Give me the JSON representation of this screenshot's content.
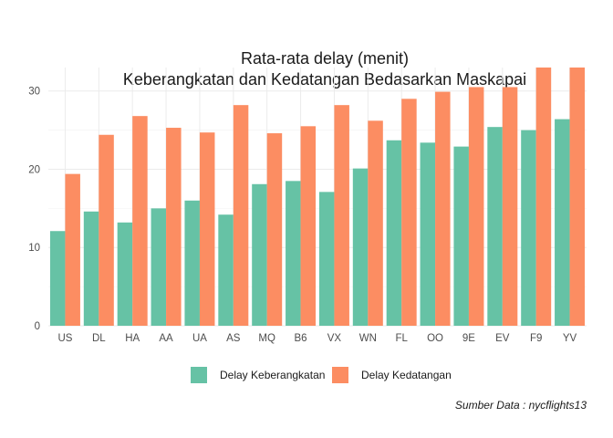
{
  "chart_data": {
    "type": "bar",
    "title_lines": [
      "Rata-rata delay (menit)",
      "Keberangkatan dan Kedatangan Bedasarkan Maskapai"
    ],
    "xlabel": "",
    "ylabel": "",
    "categories": [
      "US",
      "DL",
      "HA",
      "AA",
      "UA",
      "AS",
      "MQ",
      "B6",
      "VX",
      "WN",
      "FL",
      "OO",
      "9E",
      "EV",
      "F9",
      "YV"
    ],
    "series": [
      {
        "name": "Delay Keberangkatan",
        "color": "#66c2a5",
        "values": [
          12.1,
          14.6,
          13.2,
          15.0,
          16.0,
          14.2,
          18.1,
          18.5,
          17.1,
          20.1,
          23.7,
          23.4,
          22.9,
          25.4,
          25.0,
          26.4
        ]
      },
      {
        "name": "Delay Kedatangan",
        "color": "#fc8d62",
        "values": [
          19.4,
          24.4,
          26.8,
          25.3,
          24.7,
          28.2,
          24.6,
          25.5,
          28.2,
          26.2,
          29.0,
          29.9,
          30.5,
          30.5,
          33.2,
          33.3
        ]
      }
    ],
    "yticks": [
      0,
      10,
      20,
      30
    ],
    "ylim": [
      0,
      33
    ],
    "grid": true,
    "legend_position": "bottom",
    "caption": "Sumber Data : nycflights13"
  }
}
